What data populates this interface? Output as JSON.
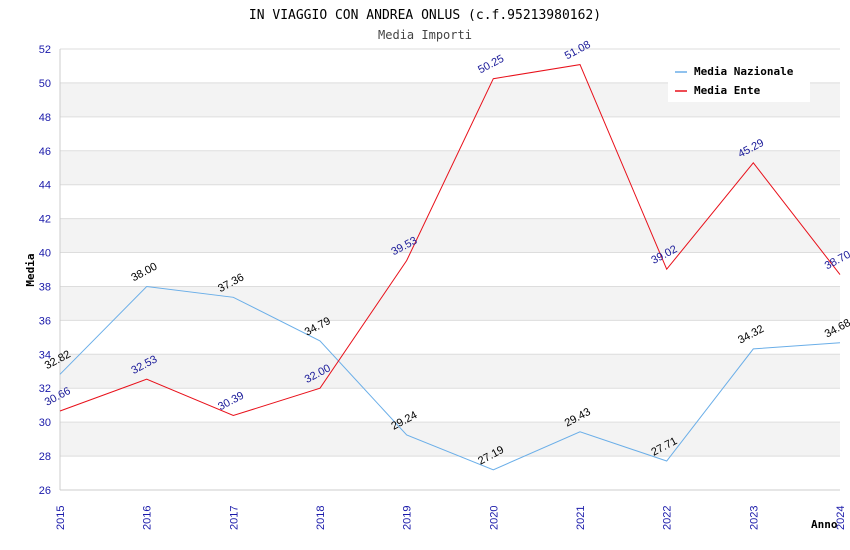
{
  "chart_data": {
    "type": "line",
    "title": "IN VIAGGIO CON ANDREA ONLUS (c.f.95213980162)",
    "subtitle": "Media Importi",
    "xlabel": "Anno",
    "ylabel": "Media",
    "categories": [
      "2015",
      "2016",
      "2017",
      "2018",
      "2019",
      "2020",
      "2021",
      "2022",
      "2023",
      "2024"
    ],
    "ylim": [
      26,
      52
    ],
    "yticks": [
      26,
      28,
      30,
      32,
      34,
      36,
      38,
      40,
      42,
      44,
      46,
      48,
      50,
      52
    ],
    "legend_position": "top-right",
    "series": [
      {
        "name": "Media Nazionale",
        "color": "#6aaee8",
        "values": [
          32.82,
          38.0,
          37.36,
          34.79,
          29.24,
          27.19,
          29.43,
          27.71,
          34.32,
          34.68
        ],
        "labels": [
          "32.82",
          "38.00",
          "37.36",
          "34.79",
          "29.24",
          "27.19",
          "29.43",
          "27.71",
          "34.32",
          "34.68"
        ]
      },
      {
        "name": "Media Ente",
        "color": "#e8101a",
        "values": [
          30.66,
          32.53,
          30.39,
          32.0,
          39.53,
          50.25,
          51.08,
          39.02,
          45.29,
          38.7
        ],
        "labels": [
          "30.66",
          "32.53",
          "30.39",
          "32.00",
          "39.53",
          "50.25",
          "51.08",
          "39.02",
          "45.29",
          "38.70"
        ]
      }
    ]
  }
}
